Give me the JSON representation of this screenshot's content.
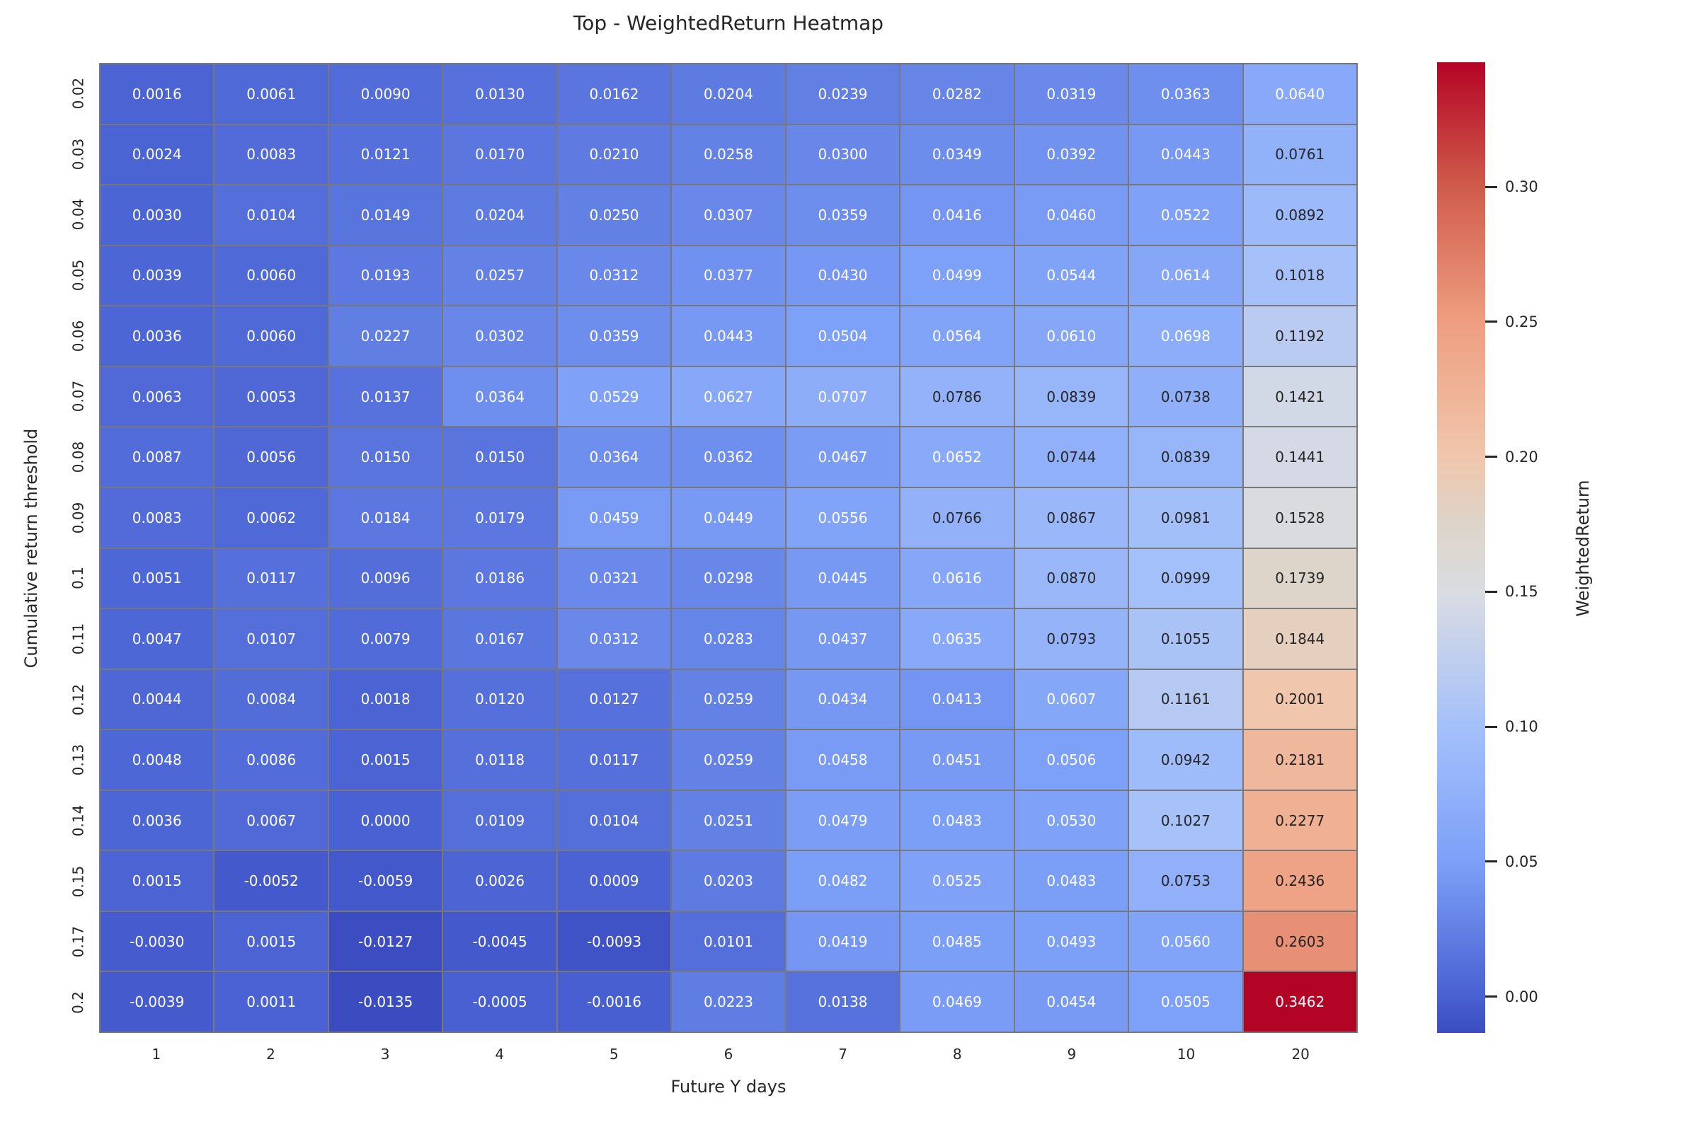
{
  "chart_data": {
    "type": "heatmap",
    "title": "Top - WeightedReturn Heatmap",
    "xlabel": "Future Y days",
    "ylabel": "Cumulative return threshold",
    "x_ticks": [
      "1",
      "2",
      "3",
      "4",
      "5",
      "6",
      "7",
      "8",
      "9",
      "10",
      "20"
    ],
    "y_ticks": [
      "0.02",
      "0.03",
      "0.04",
      "0.05",
      "0.06",
      "0.07",
      "0.08",
      "0.09",
      "0.1",
      "0.11",
      "0.12",
      "0.13",
      "0.14",
      "0.15",
      "0.17",
      "0.2"
    ],
    "values": [
      [
        0.0016,
        0.0061,
        0.009,
        0.013,
        0.0162,
        0.0204,
        0.0239,
        0.0282,
        0.0319,
        0.0363,
        0.064
      ],
      [
        0.0024,
        0.0083,
        0.0121,
        0.017,
        0.021,
        0.0258,
        0.03,
        0.0349,
        0.0392,
        0.0443,
        0.0761
      ],
      [
        0.003,
        0.0104,
        0.0149,
        0.0204,
        0.025,
        0.0307,
        0.0359,
        0.0416,
        0.046,
        0.0522,
        0.0892
      ],
      [
        0.0039,
        0.006,
        0.0193,
        0.0257,
        0.0312,
        0.0377,
        0.043,
        0.0499,
        0.0544,
        0.0614,
        0.1018
      ],
      [
        0.0036,
        0.006,
        0.0227,
        0.0302,
        0.0359,
        0.0443,
        0.0504,
        0.0564,
        0.061,
        0.0698,
        0.1192
      ],
      [
        0.0063,
        0.0053,
        0.0137,
        0.0364,
        0.0529,
        0.0627,
        0.0707,
        0.0786,
        0.0839,
        0.0738,
        0.1421
      ],
      [
        0.0087,
        0.0056,
        0.015,
        0.015,
        0.0364,
        0.0362,
        0.0467,
        0.0652,
        0.0744,
        0.0839,
        0.1441
      ],
      [
        0.0083,
        0.0062,
        0.0184,
        0.0179,
        0.0459,
        0.0449,
        0.0556,
        0.0766,
        0.0867,
        0.0981,
        0.1528
      ],
      [
        0.0051,
        0.0117,
        0.0096,
        0.0186,
        0.0321,
        0.0298,
        0.0445,
        0.0616,
        0.087,
        0.0999,
        0.1739
      ],
      [
        0.0047,
        0.0107,
        0.0079,
        0.0167,
        0.0312,
        0.0283,
        0.0437,
        0.0635,
        0.0793,
        0.1055,
        0.1844
      ],
      [
        0.0044,
        0.0084,
        0.0018,
        0.012,
        0.0127,
        0.0259,
        0.0434,
        0.0413,
        0.0607,
        0.1161,
        0.2001
      ],
      [
        0.0048,
        0.0086,
        0.0015,
        0.0118,
        0.0117,
        0.0259,
        0.0458,
        0.0451,
        0.0506,
        0.0942,
        0.2181
      ],
      [
        0.0036,
        0.0067,
        0.0,
        0.0109,
        0.0104,
        0.0251,
        0.0479,
        0.0483,
        0.053,
        0.1027,
        0.2277
      ],
      [
        0.0015,
        -0.0052,
        -0.0059,
        0.0026,
        0.0009,
        0.0203,
        0.0482,
        0.0525,
        0.0483,
        0.0753,
        0.2436
      ],
      [
        -0.003,
        0.0015,
        -0.0127,
        -0.0045,
        -0.0093,
        0.0101,
        0.0419,
        0.0485,
        0.0493,
        0.056,
        0.2603
      ],
      [
        -0.0039,
        0.0011,
        -0.0135,
        -0.0005,
        -0.0016,
        0.0223,
        0.0138,
        0.0469,
        0.0454,
        0.0505,
        0.3462
      ]
    ],
    "annotation_decimals": 4,
    "colorbar": {
      "label": "WeightedReturn",
      "vmin": -0.0135,
      "vmax": 0.3462,
      "ticks": [
        {
          "label": "0.30",
          "value": 0.3
        },
        {
          "label": "0.25",
          "value": 0.25
        },
        {
          "label": "0.20",
          "value": 0.2
        },
        {
          "label": "0.15",
          "value": 0.15
        },
        {
          "label": "0.10",
          "value": 0.1
        },
        {
          "label": "0.05",
          "value": 0.05
        },
        {
          "label": "0.00",
          "value": 0.0
        }
      ]
    },
    "colormap": {
      "name": "coolwarm",
      "anchors": [
        {
          "value": -0.0135,
          "color": "#3b4cc0"
        },
        {
          "value": 0.0,
          "color": "#4961d2"
        },
        {
          "value": 0.05,
          "color": "#7da0f8"
        },
        {
          "value": 0.1,
          "color": "#a4c0fa"
        },
        {
          "value": 0.15,
          "color": "#dadce2"
        },
        {
          "value": 0.1739,
          "color": "#ddd5ca"
        },
        {
          "value": 0.2,
          "color": "#f0c6ac"
        },
        {
          "value": 0.25,
          "color": "#ee9e80"
        },
        {
          "value": 0.3,
          "color": "#d05c4b"
        },
        {
          "value": 0.3462,
          "color": "#b40426"
        }
      ],
      "text_dark": "#262626",
      "text_light": "#ffffff",
      "dark_text_min": 0.072,
      "dark_text_max": 0.31
    },
    "grid_line_color": "#787878",
    "legend_position": "right",
    "grid": "cell-borders"
  }
}
